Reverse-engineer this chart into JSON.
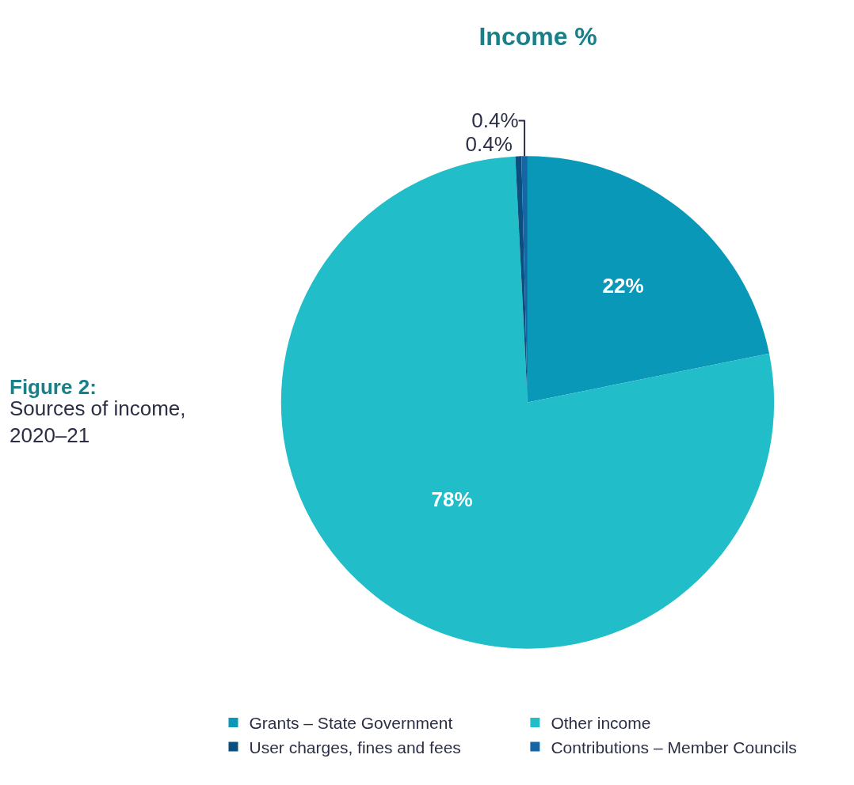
{
  "chart_data": {
    "type": "pie",
    "title": "Income %",
    "categories": [
      "Grants – State Government",
      "Other income",
      "User charges, fines and fees",
      "Contributions – Member Councils"
    ],
    "values": [
      22,
      78,
      0.4,
      0.4
    ],
    "colors": [
      "#0a98b8",
      "#21bec9",
      "#0b4f80",
      "#1466a6"
    ],
    "value_labels": [
      "22%",
      "78%",
      "0.4%",
      "0.4%"
    ],
    "legend": "bottom",
    "annotations": [
      "Figure 2:",
      "Sources of income, 2020–21"
    ]
  }
}
